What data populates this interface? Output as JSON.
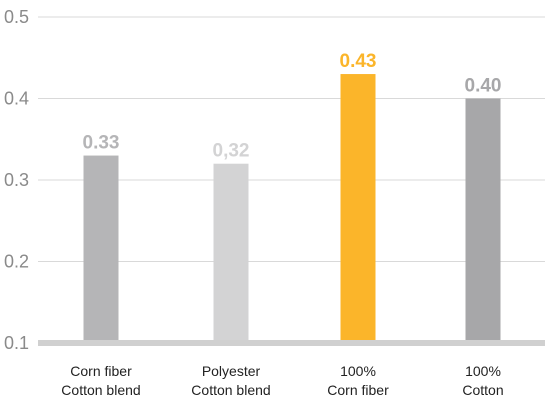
{
  "chart_data": {
    "type": "bar",
    "categories": [
      [
        "Corn fiber",
        "Cotton blend"
      ],
      [
        "Polyester",
        "Cotton blend"
      ],
      [
        "100%",
        "Corn fiber"
      ],
      [
        "100%",
        "Cotton"
      ]
    ],
    "values": [
      0.33,
      0.32,
      0.43,
      0.4
    ],
    "value_labels": [
      "0.33",
      "0,32",
      "0.43",
      "0.40"
    ],
    "bar_colors": [
      "#b5b5b7",
      "#d3d3d4",
      "#fbb52a",
      "#a7a7a9"
    ],
    "value_label_colors": [
      "#b5b5b7",
      "#d3d3d4",
      "#fbb52a",
      "#a7a7a9"
    ],
    "yticks": [
      0.1,
      0.2,
      0.3,
      0.4,
      0.5
    ],
    "ytick_labels": [
      "0.1",
      "0.2",
      "0.3",
      "0.4",
      "0.5"
    ],
    "ylim": [
      0.1,
      0.5
    ],
    "grid": true,
    "gridline_color": "#d9d9d9",
    "baseline_color": "#d0d0d0",
    "title": "",
    "xlabel": "",
    "ylabel": ""
  }
}
